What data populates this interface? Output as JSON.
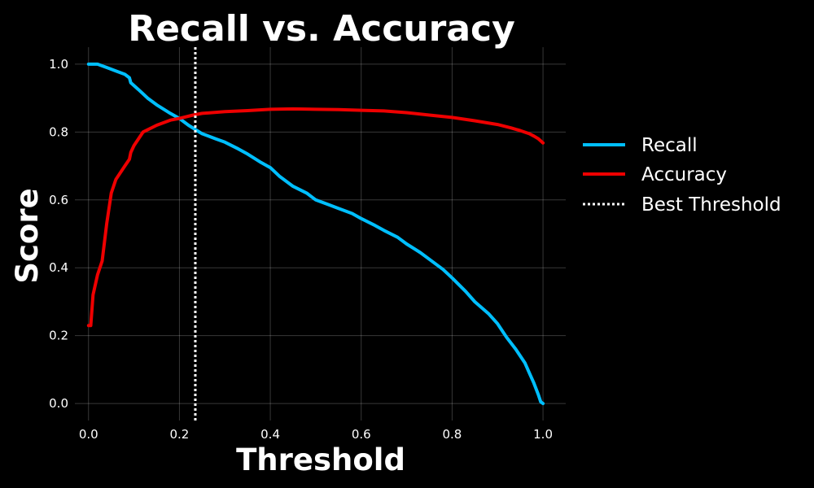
{
  "chart_data": {
    "type": "line",
    "title": "Recall vs. Accuracy",
    "xlabel": "Threshold",
    "ylabel": "Score",
    "xlim": [
      -0.03,
      1.05
    ],
    "ylim": [
      -0.05,
      1.05
    ],
    "xticks": [
      0.0,
      0.2,
      0.4,
      0.6,
      0.8,
      1.0
    ],
    "xtick_labels": [
      "0.0",
      "0.2",
      "0.4",
      "0.6",
      "0.8",
      "1.0"
    ],
    "yticks": [
      0.0,
      0.2,
      0.4,
      0.6,
      0.8,
      1.0
    ],
    "ytick_labels": [
      "0.0",
      "0.2",
      "0.4",
      "0.6",
      "0.8",
      "1.0"
    ],
    "grid": true,
    "legend_placement": "outside-right",
    "background": "#000000",
    "series": [
      {
        "name": "Recall",
        "color": "#00bfff",
        "x": [
          0.0,
          0.02,
          0.04,
          0.06,
          0.08,
          0.09,
          0.093,
          0.11,
          0.13,
          0.15,
          0.18,
          0.2,
          0.22,
          0.25,
          0.28,
          0.3,
          0.33,
          0.35,
          0.38,
          0.4,
          0.42,
          0.45,
          0.48,
          0.5,
          0.53,
          0.55,
          0.58,
          0.6,
          0.63,
          0.65,
          0.68,
          0.7,
          0.73,
          0.75,
          0.78,
          0.8,
          0.83,
          0.85,
          0.88,
          0.9,
          0.92,
          0.94,
          0.96,
          0.97,
          0.98,
          0.99,
          0.995,
          1.0
        ],
        "y": [
          1.0,
          1.0,
          0.99,
          0.98,
          0.97,
          0.96,
          0.945,
          0.925,
          0.9,
          0.88,
          0.855,
          0.84,
          0.82,
          0.795,
          0.78,
          0.77,
          0.75,
          0.735,
          0.71,
          0.695,
          0.67,
          0.64,
          0.62,
          0.6,
          0.585,
          0.575,
          0.56,
          0.545,
          0.525,
          0.51,
          0.49,
          0.47,
          0.445,
          0.425,
          0.395,
          0.37,
          0.33,
          0.3,
          0.265,
          0.235,
          0.195,
          0.16,
          0.12,
          0.09,
          0.06,
          0.025,
          0.005,
          0.0
        ]
      },
      {
        "name": "Accuracy",
        "color": "#ee0000",
        "x": [
          0.0,
          0.005,
          0.01,
          0.02,
          0.03,
          0.04,
          0.05,
          0.06,
          0.08,
          0.09,
          0.093,
          0.1,
          0.12,
          0.15,
          0.18,
          0.2,
          0.23,
          0.25,
          0.3,
          0.35,
          0.4,
          0.45,
          0.5,
          0.55,
          0.6,
          0.65,
          0.7,
          0.75,
          0.8,
          0.85,
          0.9,
          0.93,
          0.95,
          0.97,
          0.98,
          0.99,
          1.0
        ],
        "y": [
          0.23,
          0.23,
          0.32,
          0.38,
          0.42,
          0.53,
          0.62,
          0.66,
          0.7,
          0.72,
          0.74,
          0.76,
          0.8,
          0.82,
          0.835,
          0.84,
          0.85,
          0.855,
          0.86,
          0.863,
          0.867,
          0.868,
          0.867,
          0.866,
          0.864,
          0.862,
          0.857,
          0.85,
          0.843,
          0.833,
          0.822,
          0.812,
          0.804,
          0.795,
          0.788,
          0.78,
          0.768
        ]
      }
    ],
    "best_threshold": {
      "name": "Best Threshold",
      "x": 0.235,
      "color": "#ffffff",
      "style": "dotted"
    }
  }
}
